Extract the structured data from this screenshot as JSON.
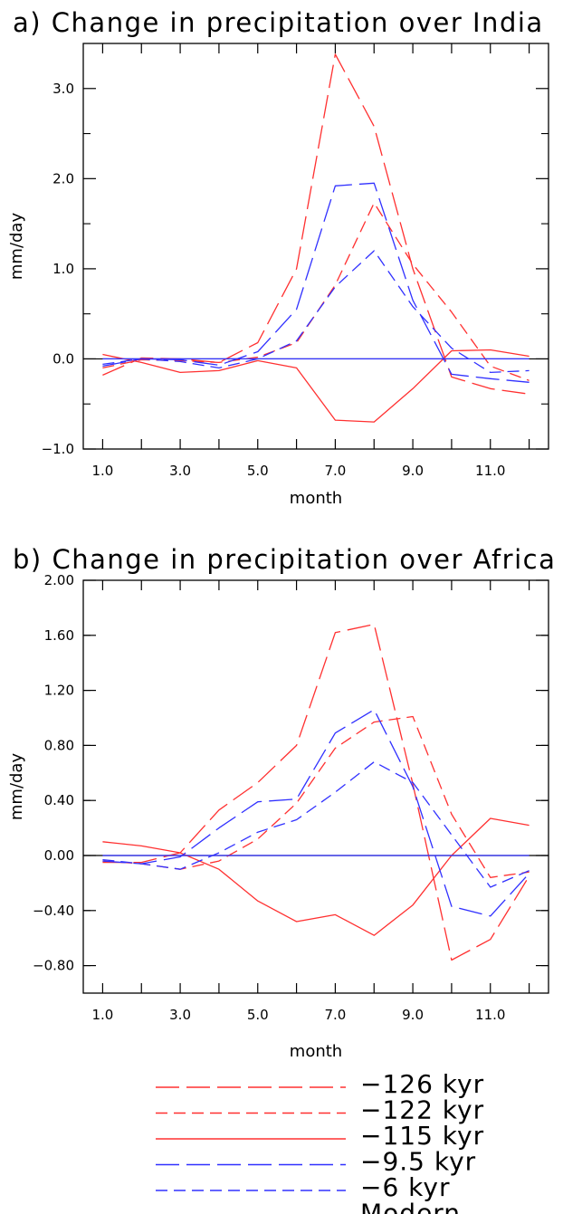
{
  "chart_data": [
    {
      "type": "line",
      "title": "a) Change in precipitation over India",
      "xlabel": "month",
      "ylabel": "mm/day",
      "xlim": [
        0.5,
        12.5
      ],
      "ylim": [
        -1.0,
        3.5
      ],
      "x_ticks": [
        1.0,
        3.0,
        5.0,
        7.0,
        9.0,
        11.0
      ],
      "x_tick_labels": [
        "1.0",
        "3.0",
        "5.0",
        "7.0",
        "9.0",
        "11.0"
      ],
      "y_ticks": [
        -1.0,
        0.0,
        1.0,
        2.0,
        3.0
      ],
      "y_tick_labels": [
        "−1.0",
        "0.0",
        "1.0",
        "2.0",
        "3.0"
      ],
      "zero_line": true,
      "x": [
        1,
        2,
        3,
        4,
        5,
        6,
        7,
        8,
        9,
        10,
        11,
        12
      ],
      "series": [
        {
          "name": "−126 kyr",
          "color": "#ff3030",
          "dash": "long",
          "values": [
            -0.18,
            0.01,
            0.0,
            -0.04,
            0.18,
            1.0,
            3.38,
            2.58,
            1.0,
            -0.2,
            -0.33,
            -0.39
          ]
        },
        {
          "name": "−122 kyr",
          "color": "#ff3030",
          "dash": "short",
          "values": [
            -0.1,
            -0.01,
            -0.02,
            -0.04,
            0.02,
            0.18,
            0.82,
            1.73,
            1.05,
            0.52,
            -0.08,
            -0.24
          ]
        },
        {
          "name": "−115 kyr",
          "color": "#ff3030",
          "dash": "solid",
          "values": [
            0.05,
            -0.04,
            -0.15,
            -0.13,
            -0.02,
            -0.1,
            -0.68,
            -0.7,
            -0.33,
            0.09,
            0.1,
            0.03
          ]
        },
        {
          "name": "−9.5 kyr",
          "color": "#3030ff",
          "dash": "long",
          "values": [
            -0.08,
            0.0,
            -0.01,
            -0.07,
            0.08,
            0.55,
            1.92,
            1.95,
            0.65,
            -0.17,
            -0.22,
            -0.26
          ]
        },
        {
          "name": "−6 kyr",
          "color": "#3030ff",
          "dash": "short",
          "values": [
            -0.06,
            0.0,
            -0.03,
            -0.1,
            0.0,
            0.2,
            0.8,
            1.2,
            0.58,
            0.12,
            -0.15,
            -0.13
          ]
        },
        {
          "name": "Modern",
          "color": "#3030ff",
          "dash": "solid",
          "values": [
            0,
            0,
            0,
            0,
            0,
            0,
            0,
            0,
            0,
            0,
            0,
            0
          ]
        }
      ]
    },
    {
      "type": "line",
      "title": "b) Change in precipitation over Africa",
      "xlabel": "month",
      "ylabel": "mm/day",
      "xlim": [
        0.5,
        12.5
      ],
      "ylim": [
        -1.0,
        2.0
      ],
      "x_ticks": [
        1.0,
        3.0,
        5.0,
        7.0,
        9.0,
        11.0
      ],
      "x_tick_labels": [
        "1.0",
        "3.0",
        "5.0",
        "7.0",
        "9.0",
        "11.0"
      ],
      "y_ticks": [
        -0.8,
        -0.4,
        0.0,
        0.4,
        0.8,
        1.2,
        1.6,
        2.0
      ],
      "y_tick_labels": [
        "−0.80",
        "−0.40",
        "0.00",
        "0.40",
        "0.80",
        "1.20",
        "1.60",
        "2.00"
      ],
      "zero_line": true,
      "x": [
        1,
        2,
        3,
        4,
        5,
        6,
        7,
        8,
        9,
        10,
        11,
        12
      ],
      "series": [
        {
          "name": "−126 kyr",
          "color": "#ff3030",
          "dash": "long",
          "values": [
            -0.05,
            -0.05,
            0.02,
            0.33,
            0.53,
            0.8,
            1.62,
            1.68,
            0.52,
            -0.76,
            -0.61,
            -0.15
          ]
        },
        {
          "name": "−122 kyr",
          "color": "#ff3030",
          "dash": "short",
          "values": [
            -0.04,
            -0.06,
            -0.1,
            -0.04,
            0.12,
            0.38,
            0.78,
            0.97,
            1.01,
            0.3,
            -0.16,
            -0.12
          ]
        },
        {
          "name": "−115 kyr",
          "color": "#ff3030",
          "dash": "solid",
          "values": [
            0.1,
            0.07,
            0.02,
            -0.1,
            -0.33,
            -0.48,
            -0.43,
            -0.58,
            -0.36,
            0.0,
            0.27,
            0.22
          ]
        },
        {
          "name": "−9.5 kyr",
          "color": "#3030ff",
          "dash": "long",
          "values": [
            -0.04,
            -0.06,
            -0.01,
            0.2,
            0.39,
            0.41,
            0.89,
            1.06,
            0.5,
            -0.37,
            -0.44,
            -0.13
          ]
        },
        {
          "name": "−6 kyr",
          "color": "#3030ff",
          "dash": "short",
          "values": [
            -0.03,
            -0.06,
            -0.1,
            0.02,
            0.17,
            0.26,
            0.46,
            0.68,
            0.53,
            0.15,
            -0.23,
            -0.11
          ]
        },
        {
          "name": "Modern",
          "color": "#3030ff",
          "dash": "solid",
          "values": [
            0,
            0,
            0,
            0,
            0,
            0,
            0,
            0,
            0,
            0,
            0,
            0
          ]
        }
      ]
    }
  ],
  "legend": [
    {
      "label": "−126 kyr",
      "color": "#ff3030",
      "dash": "long"
    },
    {
      "label": "−122 kyr",
      "color": "#ff3030",
      "dash": "short"
    },
    {
      "label": "−115 kyr",
      "color": "#ff3030",
      "dash": "solid"
    },
    {
      "label": "−9.5 kyr",
      "color": "#3030ff",
      "dash": "long"
    },
    {
      "label": "−6 kyr",
      "color": "#3030ff",
      "dash": "short"
    },
    {
      "label": "Modern",
      "color": "#3030ff",
      "dash": "solid"
    }
  ]
}
